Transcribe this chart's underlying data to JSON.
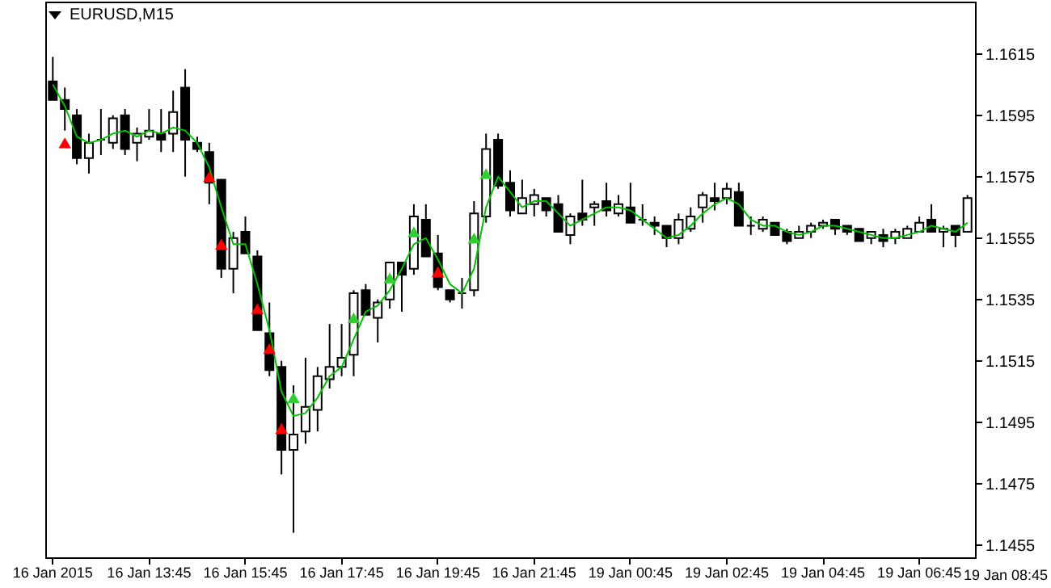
{
  "chart_data": {
    "type": "candlestick",
    "title": "EURUSD,M15",
    "annotations": [
      "19 Jan 08:45"
    ],
    "categories": [
      "16 Jan 2015",
      null,
      null,
      null,
      null,
      null,
      null,
      null,
      "16 Jan 13:45",
      null,
      null,
      null,
      null,
      null,
      null,
      null,
      "16 Jan 15:45",
      null,
      null,
      null,
      null,
      null,
      null,
      null,
      "16 Jan 17:45",
      null,
      null,
      null,
      null,
      null,
      null,
      null,
      "16 Jan 19:45",
      null,
      null,
      null,
      null,
      null,
      null,
      null,
      "16 Jan 21:45",
      null,
      null,
      null,
      null,
      null,
      null,
      null,
      "19 Jan 00:45",
      null,
      null,
      null,
      null,
      null,
      null,
      null,
      "19 Jan 02:45",
      null,
      null,
      null,
      null,
      null,
      null,
      null,
      "19 Jan 04:45",
      null,
      null,
      null,
      null,
      null,
      null,
      null,
      "19 Jan 06:45",
      null,
      null,
      null,
      null
    ],
    "ohlc": [
      [
        1.1606,
        1.1614,
        1.16,
        1.16
      ],
      [
        1.16,
        1.1604,
        1.159,
        1.1597
      ],
      [
        1.1595,
        1.1597,
        1.1579,
        1.1581
      ],
      [
        1.1581,
        1.1589,
        1.1576,
        1.1586
      ],
      [
        1.1587,
        1.1597,
        1.1582,
        1.1587
      ],
      [
        1.1586,
        1.1595,
        1.1584,
        1.1594
      ],
      [
        1.1595,
        1.1597,
        1.1582,
        1.1584
      ],
      [
        1.1586,
        1.1591,
        1.158,
        1.1589
      ],
      [
        1.1588,
        1.1597,
        1.1587,
        1.159
      ],
      [
        1.1589,
        1.1597,
        1.1583,
        1.1587
      ],
      [
        1.1589,
        1.1603,
        1.1583,
        1.1596
      ],
      [
        1.1604,
        1.161,
        1.1575,
        1.1587
      ],
      [
        1.1586,
        1.1588,
        1.1583,
        1.1584
      ],
      [
        1.1583,
        1.1586,
        1.1566,
        1.1573
      ],
      [
        1.1574,
        1.1574,
        1.1542,
        1.1545
      ],
      [
        1.1545,
        1.1557,
        1.1537,
        1.1555
      ],
      [
        1.1557,
        1.1562,
        1.155,
        1.155
      ],
      [
        1.1549,
        1.1551,
        1.1525,
        1.1525
      ],
      [
        1.1524,
        1.1534,
        1.151,
        1.1512
      ],
      [
        1.1513,
        1.1515,
        1.1478,
        1.1486
      ],
      [
        1.1486,
        1.1507,
        1.1459,
        1.1491
      ],
      [
        1.1492,
        1.1516,
        1.1488,
        1.15
      ],
      [
        1.1499,
        1.1513,
        1.1492,
        1.151
      ],
      [
        1.1509,
        1.1527,
        1.1506,
        1.1513
      ],
      [
        1.1513,
        1.1527,
        1.151,
        1.1516
      ],
      [
        1.1517,
        1.1538,
        1.151,
        1.1537
      ],
      [
        1.1538,
        1.154,
        1.153,
        1.153
      ],
      [
        1.1529,
        1.1535,
        1.1521,
        1.1534
      ],
      [
        1.1535,
        1.1547,
        1.1532,
        1.1547
      ],
      [
        1.1547,
        1.1547,
        1.1531,
        1.1543
      ],
      [
        1.1545,
        1.1566,
        1.1543,
        1.1562
      ],
      [
        1.1561,
        1.1566,
        1.1549,
        1.1549
      ],
      [
        1.155,
        1.1556,
        1.1538,
        1.1539
      ],
      [
        1.1538,
        1.1538,
        1.1534,
        1.1535
      ],
      [
        1.1537,
        1.1542,
        1.1532,
        1.1537
      ],
      [
        1.1538,
        1.1567,
        1.1536,
        1.1563
      ],
      [
        1.1562,
        1.1589,
        1.156,
        1.1584
      ],
      [
        1.1587,
        1.1589,
        1.1571,
        1.1572
      ],
      [
        1.1573,
        1.1577,
        1.1562,
        1.1564
      ],
      [
        1.1563,
        1.1574,
        1.1563,
        1.1568
      ],
      [
        1.1566,
        1.1571,
        1.1562,
        1.1569
      ],
      [
        1.1568,
        1.1568,
        1.1562,
        1.1564
      ],
      [
        1.1566,
        1.1569,
        1.1557,
        1.1557
      ],
      [
        1.1556,
        1.1563,
        1.1553,
        1.1562
      ],
      [
        1.1563,
        1.1574,
        1.1559,
        1.1561
      ],
      [
        1.1565,
        1.1567,
        1.1559,
        1.1566
      ],
      [
        1.1567,
        1.1573,
        1.1562,
        1.1564
      ],
      [
        1.1563,
        1.1569,
        1.1562,
        1.1566
      ],
      [
        1.1565,
        1.1573,
        1.156,
        1.156
      ],
      [
        1.1561,
        1.1566,
        1.1559,
        1.1561
      ],
      [
        1.156,
        1.1562,
        1.1556,
        1.1559
      ],
      [
        1.1559,
        1.1559,
        1.1552,
        1.1555
      ],
      [
        1.1555,
        1.1563,
        1.1553,
        1.1561
      ],
      [
        1.1558,
        1.1565,
        1.1557,
        1.1562
      ],
      [
        1.1565,
        1.157,
        1.156,
        1.1569
      ],
      [
        1.1568,
        1.1573,
        1.1564,
        1.1567
      ],
      [
        1.1568,
        1.1573,
        1.1566,
        1.1571
      ],
      [
        1.157,
        1.1573,
        1.1559,
        1.1559
      ],
      [
        1.1559,
        1.1562,
        1.1556,
        1.1559
      ],
      [
        1.1558,
        1.1562,
        1.1557,
        1.1561
      ],
      [
        1.156,
        1.156,
        1.1556,
        1.1556
      ],
      [
        1.1557,
        1.1558,
        1.1553,
        1.1554
      ],
      [
        1.1555,
        1.1559,
        1.1555,
        1.1557
      ],
      [
        1.1557,
        1.156,
        1.1555,
        1.1559
      ],
      [
        1.1559,
        1.1561,
        1.1558,
        1.156
      ],
      [
        1.1561,
        1.1561,
        1.1556,
        1.1558
      ],
      [
        1.1559,
        1.1559,
        1.1556,
        1.1557
      ],
      [
        1.1558,
        1.1558,
        1.1554,
        1.1554
      ],
      [
        1.1555,
        1.1557,
        1.1553,
        1.1557
      ],
      [
        1.1556,
        1.1558,
        1.1552,
        1.1554
      ],
      [
        1.1555,
        1.1558,
        1.1553,
        1.1557
      ],
      [
        1.1555,
        1.1559,
        1.1555,
        1.1558
      ],
      [
        1.1557,
        1.1562,
        1.1557,
        1.156
      ],
      [
        1.1561,
        1.1566,
        1.1557,
        1.1557
      ],
      [
        1.1557,
        1.1559,
        1.1552,
        1.1558
      ],
      [
        1.1559,
        1.1559,
        1.1552,
        1.1556
      ],
      [
        1.1557,
        1.1569,
        1.1557,
        1.1568
      ]
    ],
    "series": [
      {
        "type": "line",
        "color": "#00c000",
        "values": [
          1.1605,
          1.1598,
          1.1588,
          1.1586,
          1.1587,
          1.1589,
          1.159,
          1.1588,
          1.159,
          1.1589,
          1.1591,
          1.159,
          1.1586,
          1.1578,
          1.1565,
          1.1553,
          1.1553,
          1.154,
          1.1525,
          1.1505,
          1.1497,
          1.1498,
          1.1503,
          1.151,
          1.1513,
          1.1522,
          1.1531,
          1.1533,
          1.1538,
          1.1545,
          1.1553,
          1.1555,
          1.1548,
          1.154,
          1.1537,
          1.1545,
          1.1565,
          1.1575,
          1.157,
          1.1565,
          1.1567,
          1.1567,
          1.1563,
          1.1559,
          1.1561,
          1.1563,
          1.1565,
          1.1565,
          1.1564,
          1.1561,
          1.1558,
          1.1555,
          1.1556,
          1.1559,
          1.1563,
          1.1566,
          1.1568,
          1.1566,
          1.1561,
          1.1559,
          1.1559,
          1.1557,
          1.1556,
          1.1557,
          1.1559,
          1.1559,
          1.1558,
          1.1557,
          1.1556,
          1.1555,
          1.1555,
          1.1556,
          1.1557,
          1.1559,
          1.1558,
          1.1557,
          1.156
        ]
      },
      {
        "type": "scatter",
        "color": "#ff0000",
        "marker": "triangle",
        "values": [
          null,
          1.1586,
          null,
          null,
          null,
          null,
          null,
          null,
          null,
          null,
          null,
          null,
          null,
          1.1575,
          1.1553,
          null,
          null,
          1.1532,
          1.1519,
          1.1493,
          null,
          null,
          null,
          null,
          null,
          null,
          null,
          null,
          null,
          null,
          null,
          null,
          1.1544,
          null,
          null,
          null,
          null,
          null,
          null,
          null,
          null,
          null,
          null,
          null,
          null,
          null,
          null,
          null,
          null,
          null,
          null,
          null,
          null,
          null,
          null,
          null,
          null,
          null,
          null,
          null,
          null,
          null,
          null,
          null,
          null,
          null,
          null,
          null,
          null,
          null,
          null,
          null,
          null,
          null,
          null,
          null,
          null
        ]
      },
      {
        "type": "scatter",
        "color": "#32cd32",
        "marker": "triangle",
        "values": [
          null,
          null,
          null,
          null,
          null,
          null,
          null,
          null,
          null,
          null,
          null,
          null,
          null,
          null,
          null,
          null,
          null,
          null,
          null,
          null,
          1.1503,
          null,
          null,
          null,
          null,
          1.1529,
          null,
          null,
          1.1542,
          null,
          1.1557,
          null,
          null,
          null,
          null,
          1.1555,
          1.1576,
          null,
          null,
          null,
          null,
          null,
          null,
          null,
          null,
          null,
          null,
          null,
          null,
          null,
          null,
          null,
          null,
          null,
          null,
          null,
          null,
          null,
          null,
          null,
          null,
          null,
          null,
          null,
          null,
          null,
          null,
          null,
          null,
          null,
          null,
          null,
          null,
          null,
          null,
          null,
          null
        ]
      }
    ],
    "ylim": [
      1.1451,
      1.1632
    ],
    "yticks": [
      1.1455,
      1.1475,
      1.1495,
      1.1515,
      1.1535,
      1.1555,
      1.1575,
      1.1595,
      1.1615
    ],
    "grid": false
  }
}
